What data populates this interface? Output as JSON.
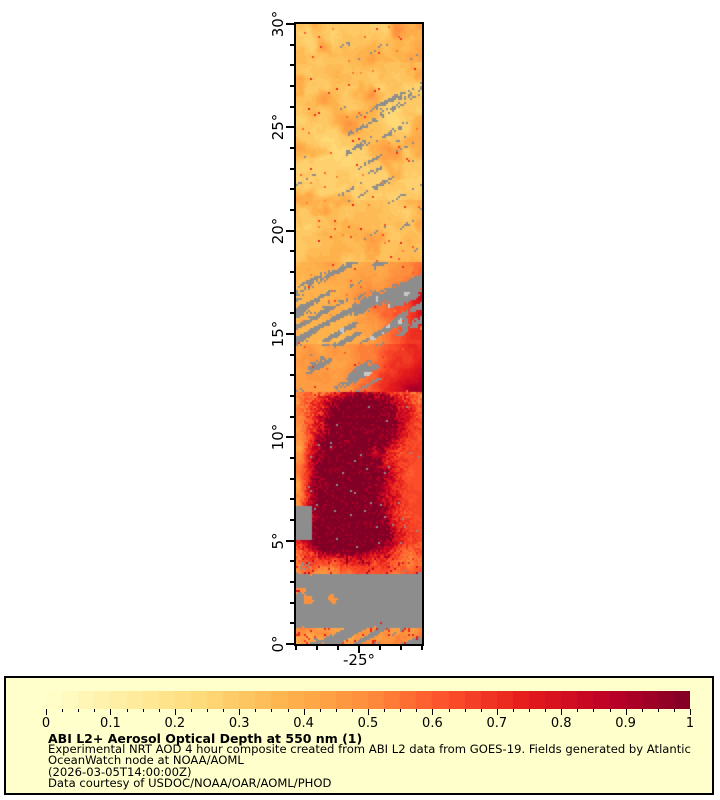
{
  "page": {
    "background": "#ffffff"
  },
  "map": {
    "y_axis": {
      "range_deg": [
        0,
        30
      ],
      "major_step_deg": 5,
      "minor_step_deg": 1,
      "labels": [
        {
          "lat": 30,
          "text": "30°"
        },
        {
          "lat": 25,
          "text": "25°"
        },
        {
          "lat": 20,
          "text": "20°"
        },
        {
          "lat": 15,
          "text": "15°"
        },
        {
          "lat": 10,
          "text": "10°"
        },
        {
          "lat": 5,
          "text": "5°"
        },
        {
          "lat": 0,
          "text": "0°"
        }
      ]
    },
    "x_axis": {
      "range_deg": [
        -28,
        -22
      ],
      "tick_step_deg": 1,
      "labeled_tick": {
        "lon": -25,
        "text": "-25°"
      }
    },
    "missing_data_color": "#8d8d8d",
    "light_gray_color": "#c9c9c9",
    "frame_color": "#000000"
  },
  "legend": {
    "background": "#ffffcc",
    "border_color": "#000000",
    "title": "ABI L2+ Aerosol Optical Depth at 550 nm (1)",
    "lines": [
      "Experimental NRT AOD 4 hour composite created from ABI L2 data from GOES-19. Fields generated by Atlantic",
      "OceanWatch node at NOAA/AOML",
      "(2026-03-05T14:00:00Z)",
      "Data courtesy of USDOC/NOAA/OAR/AOML/PHOD"
    ],
    "colorbar": {
      "min": 0,
      "max": 1,
      "tick_labels": [
        "0",
        "0.1",
        "0.2",
        "0.3",
        "0.4",
        "0.5",
        "0.6",
        "0.7",
        "0.8",
        "0.9",
        "1"
      ],
      "minor_tick_step": 0.025,
      "n_discrete_steps": 40
    }
  },
  "chart_data": {
    "type": "heatmap",
    "title": "ABI L2+ Aerosol Optical Depth at 550 nm (1)",
    "variable": "Aerosol Optical Depth (AOD) at 550 nm",
    "x": {
      "units": "degrees longitude",
      "range": [
        -28,
        -22
      ],
      "tick_step": 1,
      "labels_shown": [
        "-25°"
      ]
    },
    "y": {
      "units": "degrees latitude",
      "range": [
        0,
        30
      ],
      "major_tick_step": 5,
      "minor_tick_step": 1,
      "labels_shown": [
        "0°",
        "5°",
        "10°",
        "15°",
        "20°",
        "25°",
        "30°"
      ]
    },
    "colorbar": {
      "range": [
        0,
        1
      ],
      "tick_labels": [
        "0",
        "0.1",
        "0.2",
        "0.3",
        "0.4",
        "0.5",
        "0.6",
        "0.7",
        "0.8",
        "0.9",
        "1"
      ],
      "n_discrete_steps": 40,
      "colormap_stops": [
        {
          "v": 0.0,
          "hex": "#ffffcc"
        },
        {
          "v": 0.125,
          "hex": "#ffeda0"
        },
        {
          "v": 0.25,
          "hex": "#fed976"
        },
        {
          "v": 0.375,
          "hex": "#feb24c"
        },
        {
          "v": 0.5,
          "hex": "#fd8d3c"
        },
        {
          "v": 0.625,
          "hex": "#fc4e2a"
        },
        {
          "v": 0.75,
          "hex": "#e31a1c"
        },
        {
          "v": 0.875,
          "hex": "#bd0026"
        },
        {
          "v": 1.0,
          "hex": "#800026"
        }
      ],
      "missing_data_color": "#8d8d8d"
    },
    "regions_estimated_aod": [
      {
        "lat_range": [
          18.5,
          30
        ],
        "aod_range": [
          0.15,
          0.4
        ],
        "note": "pale yellow haze with light orange patches and scattered diagonal gray cloud streaks"
      },
      {
        "lat_range": [
          14.5,
          18.5
        ],
        "aod_range": [
          0.25,
          0.65
        ],
        "note": "heavy diagonal gray cloud streaks; orange 0.5-0.7 along right edge; a few light-gray patches"
      },
      {
        "lat_range": [
          12,
          14.5
        ],
        "aod_range": [
          0.3,
          0.65
        ],
        "note": "transition band, orange strengthening toward right and south"
      },
      {
        "lat_range": [
          4.5,
          12
        ],
        "aod_range": [
          0.6,
          1.0
        ],
        "note": "dense dust plume; maroon core >= 0.9 in center-left, bright red ring, orange 0.55-0.7 column along right edge; small gray blob on left edge near 5-7 deg"
      },
      {
        "lat_range": [
          3.3,
          4.5
        ],
        "aod_range": [
          0.4,
          0.75
        ],
        "note": "orange-red band south of plume, yellower at left"
      },
      {
        "lat_range": [
          0.7,
          3.3
        ],
        "aod_range": [
          0.3,
          0.5
        ],
        "note": "mostly cloud-masked solid gray with small yellow streaks at left"
      },
      {
        "lat_range": [
          0,
          0.7
        ],
        "aod_range": [
          0.3,
          0.55
        ],
        "note": "broken yellow-orange strip along bottom edge"
      }
    ]
  }
}
